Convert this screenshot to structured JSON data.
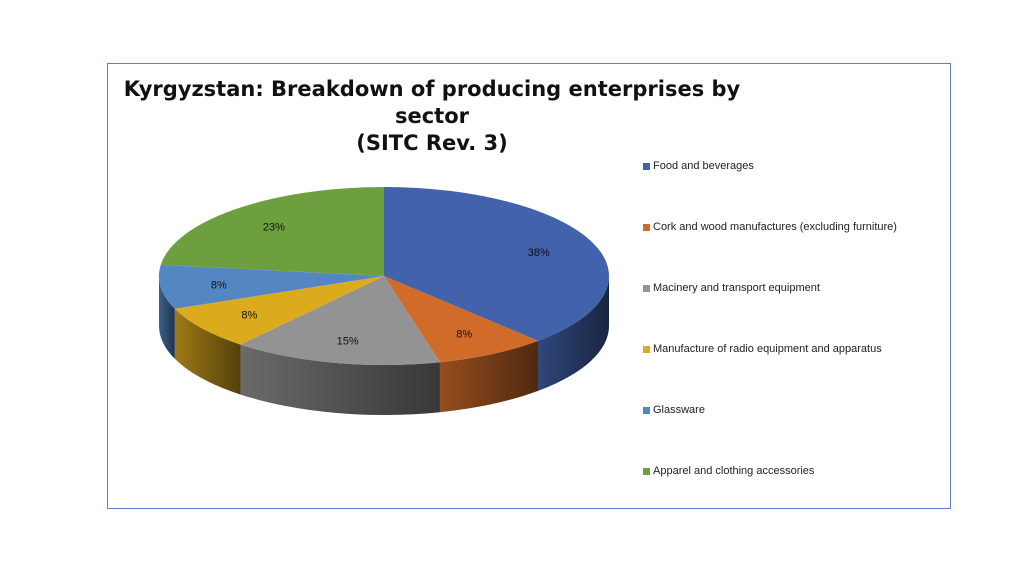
{
  "chart_data": {
    "type": "pie",
    "title_line1": "Kyrgyzstan: Breakdown of producing enterprises by sector",
    "title_line2": "(SITC Rev. 3)",
    "categories": [
      "Food and beverages",
      "Cork and wood manufactures (excluding furniture)",
      "Macinery and transport equipment",
      "Manufacture of radio equipment and apparatus",
      "Glassware",
      "Apparel and clothing accessories"
    ],
    "values": [
      38,
      8,
      15,
      8,
      8,
      23
    ],
    "labels": [
      "38%",
      "8%",
      "15%",
      "8%",
      "8%",
      "23%"
    ],
    "colors": [
      "#4262ab",
      "#d06b2a",
      "#939393",
      "#dcaa1d",
      "#5586c4",
      "#6d9f3e"
    ],
    "legend_position": "right"
  }
}
